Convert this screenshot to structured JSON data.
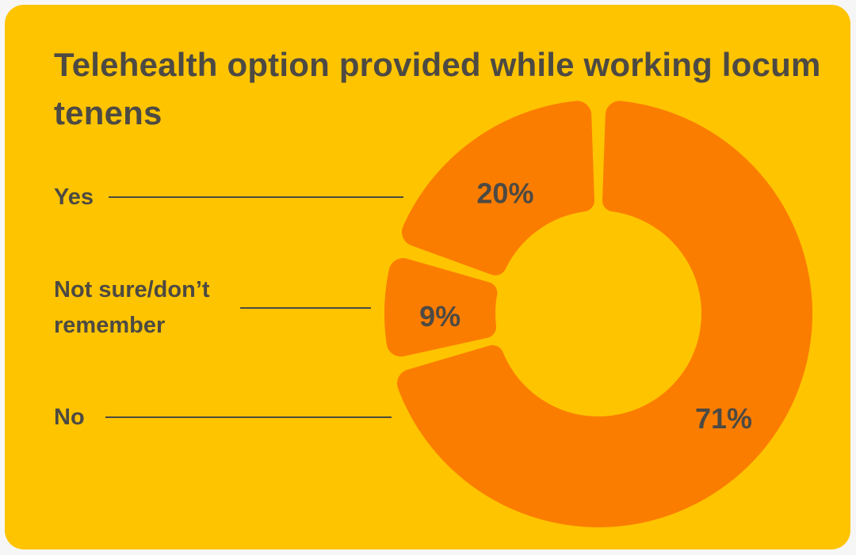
{
  "page": {
    "background": "#F6F6F6"
  },
  "card": {
    "background": "#FFC400",
    "text_color": "#4D4A43"
  },
  "chart_data": {
    "type": "pie",
    "subtype": "donut",
    "title": "Telehealth option provided while working locum tenens",
    "categories": [
      "No",
      "Not sure/don’t remember",
      "Yes"
    ],
    "values": [
      71,
      9,
      20
    ],
    "unit": "%",
    "start_angle_deg": 0,
    "direction": "clockwise",
    "inner_radius_ratio": 0.48,
    "legend_position": "left",
    "grid": false,
    "segments": [
      {
        "label": "No",
        "pct": 71,
        "value_label": "71%",
        "color": "#FB7D00"
      },
      {
        "label": "Not sure/don’t remember",
        "pct": 9,
        "value_label": "9%",
        "color": "#FB7D00"
      },
      {
        "label": "Yes",
        "pct": 20,
        "value_label": "20%",
        "color": "#FB7D00"
      }
    ],
    "colors": {
      "background": "#FFC400",
      "segment": "#FB7D00",
      "label_text": "#4D4A43",
      "leader_line": "#4D4A43"
    }
  }
}
